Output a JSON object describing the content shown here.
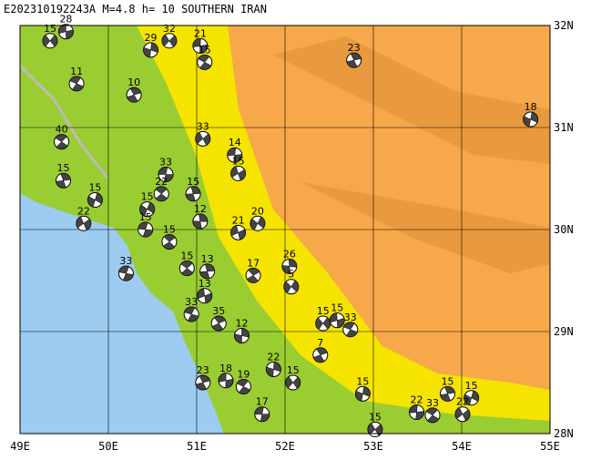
{
  "title": "E202310192243A M=4.8 h= 10 SOUTHERN IRAN",
  "xlim": [
    49,
    55
  ],
  "ylim": [
    28,
    32
  ],
  "xticks": [
    {
      "value": 49,
      "label": "49E"
    },
    {
      "value": 50,
      "label": "50E"
    },
    {
      "value": 51,
      "label": "51E"
    },
    {
      "value": 52,
      "label": "52E"
    },
    {
      "value": 53,
      "label": "53E"
    },
    {
      "value": 54,
      "label": "54E"
    },
    {
      "value": 55,
      "label": "55E"
    }
  ],
  "yticks": [
    {
      "value": 28,
      "label": "28N"
    },
    {
      "value": 29,
      "label": "29N"
    },
    {
      "value": 30,
      "label": "30N"
    },
    {
      "value": 31,
      "label": "31N"
    },
    {
      "value": 32,
      "label": "32N"
    }
  ],
  "events": [
    {
      "lon": 49.34,
      "lat": 31.85,
      "label": 15
    },
    {
      "lon": 49.52,
      "lat": 31.94,
      "label": 28
    },
    {
      "lon": 49.64,
      "lat": 31.43,
      "label": 11
    },
    {
      "lon": 50.29,
      "lat": 31.32,
      "label": 10
    },
    {
      "lon": 50.48,
      "lat": 31.76,
      "label": 29
    },
    {
      "lon": 50.69,
      "lat": 31.85,
      "label": 32
    },
    {
      "lon": 51.04,
      "lat": 31.8,
      "label": 21
    },
    {
      "lon": 51.09,
      "lat": 31.64,
      "label": 15
    },
    {
      "lon": 52.78,
      "lat": 31.66,
      "label": 23
    },
    {
      "lon": 54.78,
      "lat": 31.08,
      "label": 18
    },
    {
      "lon": 51.07,
      "lat": 30.89,
      "label": 33
    },
    {
      "lon": 51.43,
      "lat": 30.73,
      "label": 14
    },
    {
      "lon": 49.47,
      "lat": 30.86,
      "label": 40
    },
    {
      "lon": 49.49,
      "lat": 30.48,
      "label": 15
    },
    {
      "lon": 49.85,
      "lat": 30.29,
      "label": 15
    },
    {
      "lon": 49.72,
      "lat": 30.06,
      "label": 22
    },
    {
      "lon": 50.65,
      "lat": 30.54,
      "label": 33
    },
    {
      "lon": 50.6,
      "lat": 30.35,
      "label": 22
    },
    {
      "lon": 50.96,
      "lat": 30.35,
      "label": 15
    },
    {
      "lon": 50.44,
      "lat": 30.2,
      "label": 15
    },
    {
      "lon": 51.47,
      "lat": 30.55,
      "label": 15
    },
    {
      "lon": 50.42,
      "lat": 30.0,
      "label": 15
    },
    {
      "lon": 50.69,
      "lat": 29.88,
      "label": 15
    },
    {
      "lon": 51.04,
      "lat": 30.08,
      "label": 12
    },
    {
      "lon": 51.69,
      "lat": 30.06,
      "label": 20
    },
    {
      "lon": 51.47,
      "lat": 29.97,
      "label": 21
    },
    {
      "lon": 50.2,
      "lat": 29.57,
      "label": 33
    },
    {
      "lon": 51.64,
      "lat": 29.55,
      "label": 17
    },
    {
      "lon": 52.05,
      "lat": 29.64,
      "label": 26
    },
    {
      "lon": 52.07,
      "lat": 29.44,
      "label": 5
    },
    {
      "lon": 51.09,
      "lat": 29.35,
      "label": 13
    },
    {
      "lon": 50.94,
      "lat": 29.17,
      "label": 33
    },
    {
      "lon": 51.25,
      "lat": 29.08,
      "label": 35
    },
    {
      "lon": 51.51,
      "lat": 28.96,
      "label": 12
    },
    {
      "lon": 52.43,
      "lat": 29.08,
      "label": 15
    },
    {
      "lon": 52.59,
      "lat": 29.11,
      "label": 15
    },
    {
      "lon": 52.74,
      "lat": 29.02,
      "label": 33
    },
    {
      "lon": 52.4,
      "lat": 28.77,
      "label": 7
    },
    {
      "lon": 51.87,
      "lat": 28.63,
      "label": 22
    },
    {
      "lon": 52.09,
      "lat": 28.5,
      "label": 15
    },
    {
      "lon": 51.33,
      "lat": 28.52,
      "label": 18
    },
    {
      "lon": 51.53,
      "lat": 28.46,
      "label": 19
    },
    {
      "lon": 51.07,
      "lat": 28.5,
      "label": 23
    },
    {
      "lon": 52.88,
      "lat": 28.39,
      "label": 15
    },
    {
      "lon": 53.02,
      "lat": 28.04,
      "label": 15
    },
    {
      "lon": 53.49,
      "lat": 28.21,
      "label": 22
    },
    {
      "lon": 53.67,
      "lat": 28.18,
      "label": 33
    },
    {
      "lon": 53.84,
      "lat": 28.39,
      "label": 15
    },
    {
      "lon": 54.11,
      "lat": 28.35,
      "label": 15
    },
    {
      "lon": 54.01,
      "lat": 28.19,
      "label": 22
    },
    {
      "lon": 51.74,
      "lat": 28.19,
      "label": 17
    },
    {
      "lon": 50.89,
      "lat": 29.62,
      "label": 15
    },
    {
      "lon": 51.12,
      "lat": 29.59,
      "label": 13
    }
  ]
}
